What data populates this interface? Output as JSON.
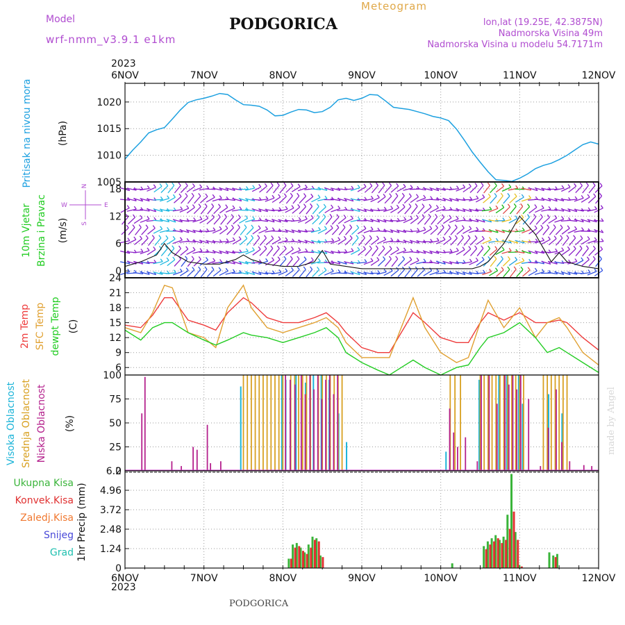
{
  "header": {
    "model_label": "Model",
    "model_name": "wrf-nmm_v3.9.1 e1km",
    "city": "PODGORICA",
    "meteogram": "Meteogram",
    "coords": "lon,lat (19.25E, 42.3875N)",
    "elevation": "Nadmorska Visina 49m",
    "model_elevation": "Nadmorska Visina u modelu 54.7171m",
    "start_year": "2023",
    "footer_city": "PODGORICA",
    "signature": "made by Angel"
  },
  "colors": {
    "pressure": "#1ca0e0",
    "temp2m": "#ee3a3a",
    "sfctemp": "#e0a030",
    "dewpt": "#22cc22",
    "wind_barb": "#8a1ec8",
    "cloud_high": "#1cb4d8",
    "cloud_mid": "#d8a020",
    "cloud_low": "#b4208c",
    "precip_total": "#3ab43a",
    "precip_conv": "#e03030",
    "precip_frozen": "#f07830",
    "precip_snow": "#4848d8",
    "precip_graupel": "#20c0b0"
  },
  "time_axis": {
    "tick_labels": [
      "6NOV",
      "7NOV",
      "8NOV",
      "9NOV",
      "10NOV",
      "11NOV",
      "12NOV"
    ],
    "year_label": "2023"
  },
  "chart_data": [
    {
      "type": "line",
      "title": "",
      "ylabel": "Pritisak na nivou mora",
      "unit": "(hPa)",
      "ylim": [
        1005,
        1023.5
      ],
      "yticks": [
        1005,
        1010,
        1015,
        1020
      ],
      "xlim_days": [
        0,
        6
      ],
      "grid": true,
      "series": [
        {
          "name": "Pritisak na nivou mora",
          "x": [
            0,
            0.1,
            0.2,
            0.3,
            0.4,
            0.5,
            0.6,
            0.7,
            0.8,
            0.9,
            1.0,
            1.1,
            1.2,
            1.3,
            1.4,
            1.5,
            1.6,
            1.7,
            1.8,
            1.9,
            2.0,
            2.1,
            2.2,
            2.3,
            2.4,
            2.5,
            2.6,
            2.7,
            2.8,
            2.9,
            3.0,
            3.1,
            3.2,
            3.3,
            3.4,
            3.5,
            3.6,
            3.7,
            3.8,
            3.9,
            4.0,
            4.1,
            4.2,
            4.3,
            4.4,
            4.5,
            4.6,
            4.7,
            4.8,
            4.9,
            5.0,
            5.1,
            5.2,
            5.3,
            5.4,
            5.5,
            5.6,
            5.7,
            5.8,
            5.9,
            6.0
          ],
          "y": [
            1009.3,
            1011.0,
            1012.5,
            1014.2,
            1014.8,
            1015.2,
            1016.8,
            1018.5,
            1019.9,
            1020.4,
            1020.7,
            1021.1,
            1021.6,
            1021.4,
            1020.4,
            1019.5,
            1019.4,
            1019.2,
            1018.5,
            1017.4,
            1017.5,
            1018.1,
            1018.6,
            1018.5,
            1018.0,
            1018.2,
            1019.0,
            1020.4,
            1020.7,
            1020.3,
            1020.7,
            1021.4,
            1021.3,
            1020.2,
            1019.0,
            1018.8,
            1018.6,
            1018.2,
            1017.8,
            1017.3,
            1017.0,
            1016.5,
            1014.9,
            1012.8,
            1010.6,
            1008.7,
            1006.9,
            1005.4,
            1005.3,
            1005.1,
            1005.7,
            1006.5,
            1007.5,
            1008.1,
            1008.5,
            1009.2,
            1010.0,
            1011.0,
            1012.0,
            1012.5,
            1012.1
          ]
        }
      ]
    },
    {
      "type": "line",
      "title": "",
      "ylabel": "10m Vjetar Brzina i Pravac",
      "unit": "(m/s)",
      "compass": [
        "W",
        "E",
        "N",
        "S"
      ],
      "ylim": [
        -1.5,
        19.5
      ],
      "yticks": [
        0,
        6,
        12,
        18
      ],
      "xlim_days": [
        0,
        6
      ],
      "grid": true,
      "series": [
        {
          "name": "10m Vjetar",
          "x": [
            0,
            0.2,
            0.4,
            0.5,
            0.6,
            0.8,
            1.0,
            1.2,
            1.4,
            1.5,
            1.6,
            1.8,
            2.0,
            2.2,
            2.4,
            2.5,
            2.6,
            2.8,
            3.0,
            3.2,
            3.4,
            3.6,
            3.8,
            4.0,
            4.2,
            4.4,
            4.5,
            4.6,
            4.7,
            4.8,
            4.9,
            5.0,
            5.1,
            5.2,
            5.3,
            5.4,
            5.5,
            5.6,
            5.8,
            6.0
          ],
          "y": [
            1.0,
            2.0,
            3.5,
            6.0,
            4.0,
            2.0,
            1.5,
            1.5,
            2.5,
            3.5,
            2.5,
            1.5,
            1.0,
            1.0,
            2.0,
            4.5,
            1.5,
            1.0,
            0.5,
            0.5,
            0.5,
            0.5,
            0.5,
            0.5,
            0.5,
            0.5,
            1.0,
            2.0,
            4.0,
            6.0,
            9.0,
            12.0,
            10.0,
            8.0,
            5.0,
            2.0,
            4.0,
            2.0,
            1.0,
            0.5
          ]
        }
      ]
    },
    {
      "type": "line",
      "title": "",
      "ylabel": "2m Temp / SFC Temp / dewpt Temp",
      "unit": "(C)",
      "ylim": [
        4.5,
        24
      ],
      "yticks": [
        6,
        9,
        12,
        15,
        18,
        21,
        24
      ],
      "xlim_days": [
        0,
        6
      ],
      "grid": true,
      "series": [
        {
          "name": "2m Temp",
          "x": [
            0,
            0.2,
            0.35,
            0.5,
            0.6,
            0.8,
            1.0,
            1.15,
            1.3,
            1.5,
            1.6,
            1.8,
            2.0,
            2.2,
            2.4,
            2.55,
            2.7,
            2.8,
            3.0,
            3.2,
            3.35,
            3.5,
            3.65,
            3.8,
            4.0,
            4.2,
            4.35,
            4.5,
            4.6,
            4.8,
            5.0,
            5.2,
            5.35,
            5.5,
            5.6,
            5.8,
            6.0
          ],
          "y": [
            14.5,
            14,
            16.5,
            20,
            20,
            15.5,
            14.5,
            13.5,
            17,
            20,
            19,
            16,
            15,
            15,
            16,
            17,
            15,
            13,
            10,
            9,
            9,
            13,
            17,
            15,
            12,
            11,
            11,
            15,
            17,
            15.5,
            17,
            15,
            15,
            15.5,
            15,
            12,
            9.5
          ]
        },
        {
          "name": "SFC Temp",
          "x": [
            0,
            0.2,
            0.35,
            0.5,
            0.6,
            0.8,
            1.0,
            1.15,
            1.3,
            1.5,
            1.6,
            1.8,
            2.0,
            2.2,
            2.4,
            2.55,
            2.7,
            2.8,
            3.0,
            3.2,
            3.35,
            3.5,
            3.65,
            3.8,
            4.0,
            4.2,
            4.35,
            4.5,
            4.6,
            4.8,
            5.0,
            5.2,
            5.35,
            5.5,
            5.6,
            5.8,
            6.0
          ],
          "y": [
            14,
            13,
            17,
            22.5,
            22,
            13,
            12,
            10,
            18,
            22.5,
            18,
            14,
            13,
            14,
            15,
            16,
            14,
            11,
            8,
            8,
            8,
            14,
            20,
            14,
            9,
            7,
            8,
            15,
            19.5,
            14,
            18,
            12,
            15,
            16,
            14,
            9,
            6.5
          ]
        },
        {
          "name": "dewpt Temp",
          "x": [
            0,
            0.2,
            0.35,
            0.5,
            0.6,
            0.8,
            1.0,
            1.15,
            1.3,
            1.5,
            1.6,
            1.8,
            2.0,
            2.2,
            2.4,
            2.55,
            2.7,
            2.8,
            3.0,
            3.2,
            3.35,
            3.5,
            3.65,
            3.8,
            4.0,
            4.2,
            4.35,
            4.5,
            4.6,
            4.8,
            5.0,
            5.2,
            5.35,
            5.5,
            5.6,
            5.8,
            6.0
          ],
          "y": [
            13.5,
            11.5,
            14,
            15,
            15,
            13,
            11.5,
            10.5,
            11.5,
            13,
            12.5,
            12,
            11,
            12,
            13,
            14,
            12,
            9,
            7,
            5.5,
            4.5,
            6,
            7.5,
            6,
            4.5,
            6,
            6.5,
            10,
            12,
            13,
            15,
            12,
            9,
            10,
            9,
            7,
            5
          ]
        }
      ]
    },
    {
      "type": "bar",
      "title": "",
      "ylabel": "Visoka Oblacnost / Srednja Oblacnost / Niska Oblacnost",
      "unit": "(%)",
      "ylim": [
        0,
        100
      ],
      "yticks": [
        0,
        25,
        50,
        75,
        100
      ],
      "xlim_days": [
        0,
        6
      ],
      "grid": true,
      "series": [
        {
          "name": "Visoka Oblacnost",
          "x": [
            1.48,
            2.0,
            2.05,
            2.18,
            2.3,
            2.4,
            2.5,
            2.6,
            2.72,
            2.82,
            4.08,
            4.5,
            4.62,
            4.75,
            4.85,
            4.92,
            5.0,
            5.05,
            5.38,
            5.55
          ],
          "y": [
            88,
            100,
            95,
            100,
            92,
            100,
            100,
            95,
            60,
            30,
            20,
            95,
            100,
            100,
            100,
            95,
            100,
            70,
            80,
            60
          ]
        },
        {
          "name": "Srednja Oblacnost",
          "x": [
            1.5,
            1.55,
            1.6,
            1.65,
            1.7,
            1.75,
            1.8,
            1.85,
            1.9,
            1.95,
            2.0,
            2.1,
            2.15,
            2.2,
            2.25,
            2.3,
            2.35,
            2.45,
            2.5,
            2.55,
            2.6,
            2.65,
            2.7,
            2.75,
            4.12,
            4.18,
            4.25,
            4.5,
            4.55,
            4.6,
            4.65,
            4.7,
            4.75,
            4.8,
            4.85,
            4.9,
            4.95,
            5.0,
            5.05,
            5.3,
            5.35,
            5.4,
            5.45,
            5.5,
            5.55,
            5.6
          ],
          "y": [
            100,
            100,
            100,
            100,
            100,
            100,
            100,
            100,
            100,
            100,
            100,
            100,
            100,
            100,
            100,
            100,
            100,
            100,
            100,
            100,
            100,
            100,
            100,
            100,
            100,
            100,
            100,
            100,
            100,
            100,
            100,
            100,
            100,
            100,
            100,
            100,
            100,
            100,
            100,
            100,
            100,
            100,
            100,
            100,
            100,
            100
          ]
        },
        {
          "name": "Niska Oblacnost",
          "x": [
            0.2,
            0.24,
            0.58,
            0.7,
            0.85,
            0.9,
            1.03,
            1.07,
            1.2,
            2.02,
            2.08,
            2.14,
            2.22,
            2.27,
            2.33,
            2.38,
            2.43,
            2.48,
            2.53,
            2.58,
            2.63,
            2.68,
            4.1,
            4.15,
            4.2,
            4.3,
            4.45,
            4.5,
            4.6,
            4.7,
            4.8,
            4.85,
            4.9,
            4.95,
            5.0,
            5.1,
            5.25,
            5.35,
            5.45,
            5.52,
            5.62,
            5.8,
            5.9
          ],
          "y": [
            60,
            98,
            10,
            5,
            25,
            22,
            48,
            8,
            10,
            100,
            95,
            90,
            100,
            80,
            100,
            85,
            100,
            75,
            95,
            100,
            80,
            100,
            65,
            40,
            25,
            35,
            10,
            100,
            100,
            70,
            100,
            90,
            100,
            85,
            100,
            75,
            5,
            45,
            85,
            30,
            10,
            6,
            5
          ]
        }
      ]
    },
    {
      "type": "bar",
      "title": "",
      "ylabel": "1hr Precip",
      "unit": "(mm)",
      "legend": [
        "Ukupna Kisa",
        "Konvek.Kisa",
        "Zaledj.Kisa",
        "Snijeg",
        "Grad"
      ],
      "ylim": [
        0,
        6.2
      ],
      "yticks": [
        0,
        1.24,
        2.48,
        3.72,
        4.96,
        6.2
      ],
      "ytick_labels": [
        "0",
        "1.24",
        "2.48",
        "3.72",
        "4.96",
        "6.2"
      ],
      "xlim_days": [
        0,
        6
      ],
      "grid": true,
      "series": [
        {
          "name": "Ukupna Kisa",
          "x": [
            2.08,
            2.13,
            2.18,
            2.23,
            2.28,
            2.33,
            2.38,
            2.43,
            2.48,
            4.15,
            4.55,
            4.6,
            4.65,
            4.7,
            4.75,
            4.8,
            4.85,
            4.9,
            4.95,
            5.0,
            5.38,
            5.43,
            5.48
          ],
          "y": [
            0.6,
            1.5,
            1.6,
            1.3,
            1.0,
            1.5,
            2.0,
            1.9,
            0.8,
            0.3,
            1.4,
            1.7,
            1.9,
            2.1,
            1.8,
            2.0,
            3.4,
            6.0,
            2.3,
            0.2,
            1.0,
            0.8,
            0.9
          ]
        },
        {
          "name": "Konvek.Kisa",
          "x": [
            2.08,
            2.13,
            2.18,
            2.23,
            2.28,
            2.33,
            2.38,
            2.43,
            2.48,
            4.55,
            4.6,
            4.65,
            4.7,
            4.75,
            4.8,
            4.85,
            4.9,
            4.95,
            5.0,
            5.43
          ],
          "y": [
            0.6,
            1.3,
            1.4,
            1.1,
            0.9,
            1.3,
            1.8,
            1.7,
            0.7,
            1.2,
            1.5,
            1.7,
            1.9,
            1.6,
            1.8,
            2.5,
            3.6,
            1.8,
            0.1,
            0.7
          ]
        }
      ]
    }
  ]
}
